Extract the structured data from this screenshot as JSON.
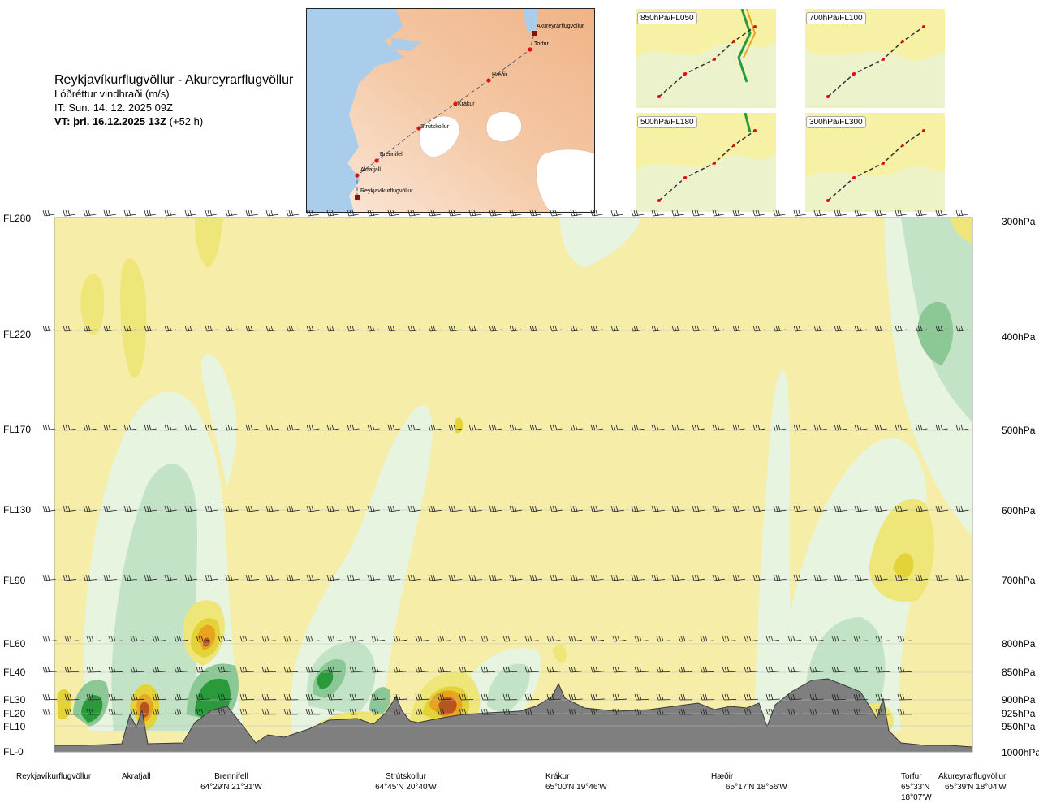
{
  "title": {
    "route": "Reykjavíkurflugvöllur - Akureyrarflugvöllur",
    "variable": "Lóðréttur vindhraði (m/s)",
    "issue": "IT: Sun. 14. 12. 2025 09Z",
    "valid_bold": "VT: þri. 16.12.2025 13Z",
    "valid_rest": " (+52 h)"
  },
  "route_map": {
    "waypoints": [
      "Akureyrarflugvöllur",
      "Torfur",
      "Hæðir",
      "Krákur",
      "Strútskollur",
      "Brennifell",
      "Akrafjall",
      "Reykjavíkurflugvöllur"
    ]
  },
  "level_maps": [
    "850hPa/FL050",
    "700hPa/FL100",
    "500hPa/FL180",
    "300hPa/FL300"
  ],
  "flight_levels": [
    "FL280",
    "FL220",
    "FL170",
    "FL130",
    "FL90",
    "FL60",
    "FL40",
    "FL30",
    "FL20",
    "FL10",
    "FL-0"
  ],
  "pressure_levels": [
    "300hPa",
    "400hPa",
    "500hPa",
    "600hPa",
    "700hPa",
    "800hPa",
    "850hPa",
    "900hPa",
    "925hPa",
    "950hPa",
    "1000hPa"
  ],
  "stations": [
    {
      "name": "Reykjavíkurflugvöllur",
      "coord": ""
    },
    {
      "name": "Akrafjall",
      "coord": ""
    },
    {
      "name": "Brennifell",
      "coord": "64°29'N 21°31'W"
    },
    {
      "name": "Strútskollur",
      "coord": "64°45'N 20°40'W"
    },
    {
      "name": "Krákur",
      "coord": "65°00'N 19°46'W"
    },
    {
      "name": "Hæðir",
      "coord": "65°17'N 18°56'W"
    },
    {
      "name": "Torfur",
      "coord": "65°33'N 18°07'W"
    },
    {
      "name": "Akureyrarflugvöllur",
      "coord": "65°39'N 18°04'W"
    }
  ],
  "colors": {
    "background_field": "#f6eea8",
    "sink_light": "#efe67a",
    "sink_mid": "#e4d336",
    "sink_strong": "#e8a41e",
    "sink_core": "#b8541e",
    "rise_light": "#e6f4e0",
    "rise_mid": "#c3e3c6",
    "rise_strong": "#8cc796",
    "rise_core": "#2a9a3a",
    "terrain": "#7f7f7f",
    "sea": "#a9cdea",
    "land": "#f6dcc4"
  }
}
